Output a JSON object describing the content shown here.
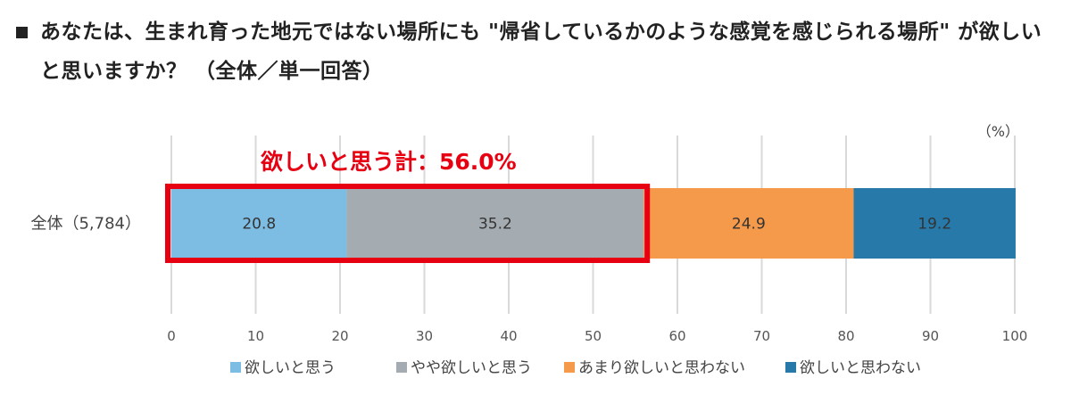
{
  "title": "あなたは、生まれ育った地元ではない場所にも \"帰省しているかのような感覚を感じられる場所\" が欲しいと思いますか？ （全体／単一回答）",
  "chart_data": {
    "type": "bar",
    "orientation": "horizontal",
    "stacked": true,
    "unit_label": "（%）",
    "categories": [
      "全体（5,784）"
    ],
    "series": [
      {
        "name": "欲しいと思う",
        "values": [
          20.8
        ],
        "color": "#7ebde3"
      },
      {
        "name": "やや欲しいと思う",
        "values": [
          35.2
        ],
        "color": "#a5acb1"
      },
      {
        "name": "あまり欲しいと思わない",
        "values": [
          24.9
        ],
        "color": "#f5994b"
      },
      {
        "name": "欲しいと思わない",
        "values": [
          19.2
        ],
        "color": "#2779aa"
      }
    ],
    "xlim": [
      0,
      100
    ],
    "xticks": [
      "0",
      "10",
      "20",
      "30",
      "40",
      "50",
      "60",
      "70",
      "80",
      "90",
      "100"
    ],
    "grid": true,
    "legend_position": "bottom",
    "annotation": {
      "text": "欲しいと思う計：56.0%",
      "series_span": [
        0,
        1
      ],
      "color": "#e60012"
    }
  }
}
